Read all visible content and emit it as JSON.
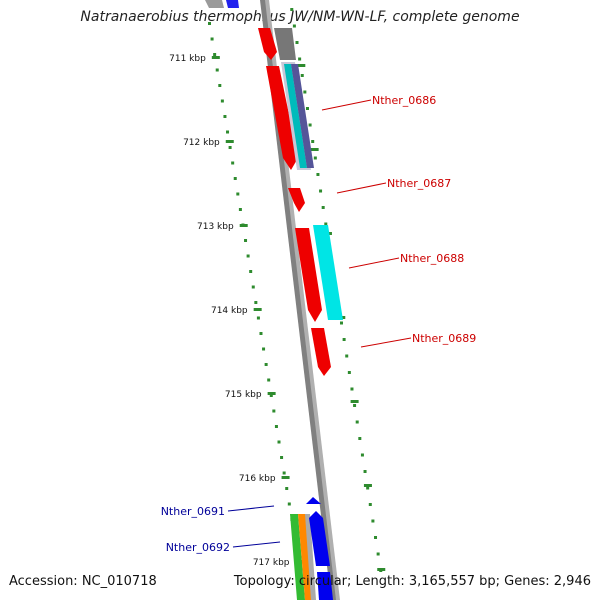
{
  "title": "Natranaerobius thermophilus JW/NM-WN-LF, complete genome",
  "accession": "Accession: NC_010718",
  "topology": "Topology: circular; Length: 3,165,557 bp; Genes: 2,946",
  "ruler": {
    "labels": [
      "711 kbp",
      "712 kbp",
      "713 kbp",
      "714 kbp",
      "715 kbp",
      "716 kbp",
      "717 kbp"
    ]
  },
  "genes": [
    {
      "name": "Nther_0686",
      "color": "#cc0000"
    },
    {
      "name": "Nther_0687",
      "color": "#cc0000"
    },
    {
      "name": "Nther_0688",
      "color": "#cc0000"
    },
    {
      "name": "Nther_0689",
      "color": "#cc0000"
    },
    {
      "name": "Nther_0691",
      "color": "#000099"
    },
    {
      "name": "Nther_0692",
      "color": "#000099"
    }
  ],
  "colors": {
    "backbone": "#808080",
    "tick": "#2e8b2e",
    "gene_red": "#ee0000",
    "gene_cyan": "#00e5e5",
    "gene_blue": "#0000ee",
    "gene_green": "#33bb33",
    "gene_orange": "#ff8800",
    "gene_gray": "#777777",
    "gene_purple": "#6a6aaa"
  }
}
